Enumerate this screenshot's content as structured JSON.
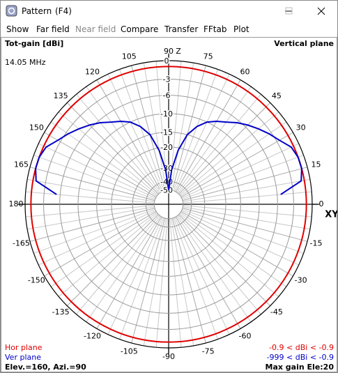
{
  "window": {
    "title": "Pattern",
    "shortcut": "(F4)"
  },
  "menu": [
    "Show",
    "Far field",
    "Near field",
    "Compare",
    "Transfer",
    "FFtab",
    "Plot"
  ],
  "chart_data": {
    "type": "polar",
    "title": "Tot-gain [dBi]",
    "subtitle": "Vertical plane",
    "frequency": "14.05 MHz",
    "axis_labels": {
      "vertical": "Z",
      "horizontal": "XY"
    },
    "angle_ticks": [
      0,
      15,
      30,
      45,
      60,
      75,
      90,
      105,
      120,
      135,
      150,
      165,
      180,
      -165,
      -150,
      -135,
      -120,
      -105,
      -90,
      -75,
      -60,
      -45,
      -30,
      -15
    ],
    "rlim": [
      -50,
      0
    ],
    "rticks": [
      0,
      -3,
      -6,
      -10,
      -15,
      -20,
      -30,
      -40,
      -50
    ],
    "series": [
      {
        "name": "Hor plane",
        "color": "#e00000",
        "range_label": "-0.9 < dBi < -0.9",
        "values": [
          -0.9
        ]
      },
      {
        "name": "Ver plane",
        "color": "#0000c8",
        "range_label": "-999 < dBi < -0.9",
        "theta": [
          5,
          10,
          15,
          20,
          25,
          30,
          35,
          40,
          45,
          50,
          55,
          60,
          65,
          70,
          75,
          80,
          85,
          90,
          95,
          100,
          105,
          110,
          115,
          120,
          125,
          130,
          135,
          140,
          145,
          150,
          155,
          160,
          165,
          170,
          175
        ],
        "values": [
          -5.3,
          -1.4,
          -0.9,
          -0.9,
          -1.3,
          -2.5,
          -3.4,
          -4.4,
          -5.4,
          -6.5,
          -7.8,
          -8.8,
          -10,
          -12,
          -15,
          -21,
          -31,
          -50,
          -31,
          -21,
          -15,
          -12,
          -10,
          -8.8,
          -7.8,
          -6.5,
          -5.4,
          -4.4,
          -3.4,
          -2.5,
          -1.3,
          -0.9,
          -0.9,
          -1.4,
          -5.3
        ]
      }
    ],
    "footer_left": "Elev.=160, Azi.=90",
    "footer_right": "Max gain Ele:20"
  }
}
